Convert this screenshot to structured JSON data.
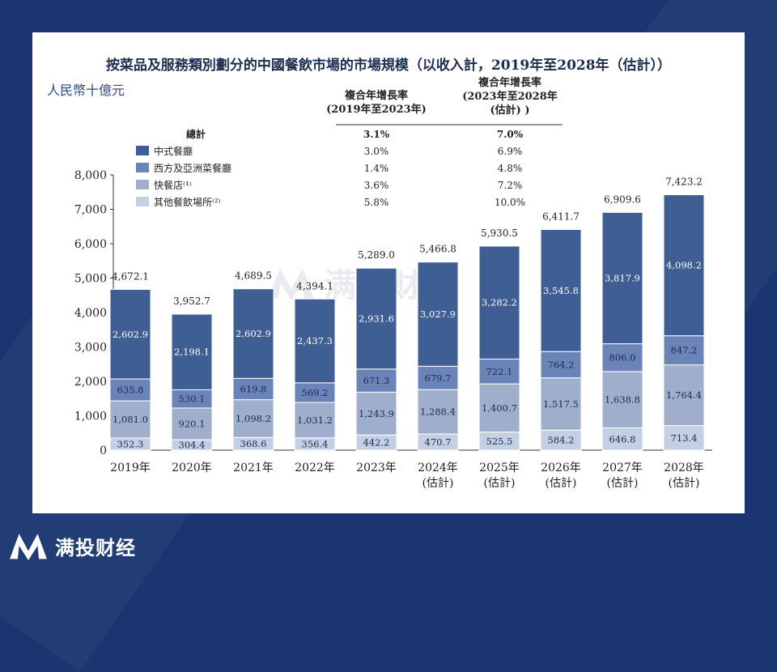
{
  "chart_data": {
    "type": "bar",
    "stacked": true,
    "title": "按菜品及服務類別劃分的中國餐飲市場的市場規模（以收入計，2019年至2028年（估計））",
    "ylabel": "人民幣十億元",
    "ylim": [
      0,
      8000
    ],
    "yticks": [
      "0",
      "1,000",
      "2,000",
      "3,000",
      "4,000",
      "5,000",
      "6,000",
      "7,000",
      "8,000"
    ],
    "categories": [
      "2019年",
      "2020年",
      "2021年",
      "2022年",
      "2023年",
      "2024年",
      "2025年",
      "2026年",
      "2027年",
      "2028年"
    ],
    "category_sub": [
      "",
      "",
      "",
      "",
      "",
      "(估計)",
      "(估計)",
      "(估計)",
      "(估計)",
      "(估計)"
    ],
    "series": [
      {
        "name": "其他餐飲場所⁽²⁾",
        "color": "#c3cfe2",
        "values": [
          352.3,
          304.4,
          368.6,
          356.4,
          442.2,
          470.7,
          525.5,
          584.2,
          646.8,
          713.4
        ],
        "labels": [
          "352.3",
          "304.4",
          "368.6",
          "356.4",
          "442.2",
          "470.7",
          "525.5",
          "584.2",
          "646.8",
          "713.4"
        ]
      },
      {
        "name": "快餐店⁽¹⁾",
        "color": "#9eaecb",
        "values": [
          1081.0,
          920.1,
          1098.2,
          1031.2,
          1243.9,
          1288.4,
          1400.7,
          1517.5,
          1638.8,
          1764.4
        ],
        "labels": [
          "1,081.0",
          "920.1",
          "1,098.2",
          "1,031.2",
          "1,243.9",
          "1,288.4",
          "1,400.7",
          "1,517.5",
          "1,638.8",
          "1,764.4"
        ]
      },
      {
        "name": "西方及亞洲菜餐廳",
        "color": "#6a84b8",
        "values": [
          635.8,
          530.1,
          619.8,
          569.2,
          671.3,
          679.7,
          722.1,
          764.2,
          806.0,
          847.2
        ],
        "labels": [
          "635.8",
          "530.1",
          "619.8",
          "569.2",
          "671.3",
          "679.7",
          "722.1",
          "764.2",
          "806.0",
          "847.2"
        ]
      },
      {
        "name": "中式餐廳",
        "color": "#3f5e93",
        "values": [
          2602.9,
          2198.1,
          2602.9,
          2437.3,
          2931.6,
          3027.9,
          3282.2,
          3545.8,
          3817.9,
          4098.2
        ],
        "labels": [
          "2,602.9",
          "2,198.1",
          "2,602.9",
          "2,437.3",
          "2,931.6",
          "3,027.9",
          "3,282.2",
          "3,545.8",
          "3,817.9",
          "4,098.2"
        ]
      }
    ],
    "totals": [
      4672.1,
      3952.7,
      4689.5,
      4394.1,
      5289.0,
      5466.8,
      5930.5,
      6411.7,
      6909.6,
      7423.2
    ],
    "total_labels": [
      "4,672.1",
      "3,952.7",
      "4,689.5",
      "4,394.1",
      "5,289.0",
      "5,466.8",
      "5,930.5",
      "6,411.7",
      "6,909.6",
      "7,423.2"
    ],
    "legend": {
      "placement": "top-left",
      "cagr_header_1": [
        "複合年增長率",
        "(2019年至2023年)"
      ],
      "cagr_header_2": [
        "複合年增長率",
        "(2023年至2028年",
        "(估計)  )"
      ],
      "rows": [
        {
          "name": "總計",
          "swatch": "",
          "cagr1": "3.1%",
          "cagr2": "7.0%"
        },
        {
          "name": "中式餐廳",
          "swatch": "#3f5e93",
          "cagr1": "3.0%",
          "cagr2": "6.9%"
        },
        {
          "name": "西方及亞洲菜餐廳",
          "swatch": "#6a84b8",
          "cagr1": "1.4%",
          "cagr2": "4.8%"
        },
        {
          "name": "快餐店⁽¹⁾",
          "swatch": "#9eaecb",
          "cagr1": "3.6%",
          "cagr2": "7.2%"
        },
        {
          "name": "其他餐飲場所⁽²⁾",
          "swatch": "#c3cfe2",
          "cagr1": "5.8%",
          "cagr2": "10.0%"
        }
      ]
    }
  },
  "brand": {
    "name": "满投财经",
    "watermark": "满投财经"
  }
}
